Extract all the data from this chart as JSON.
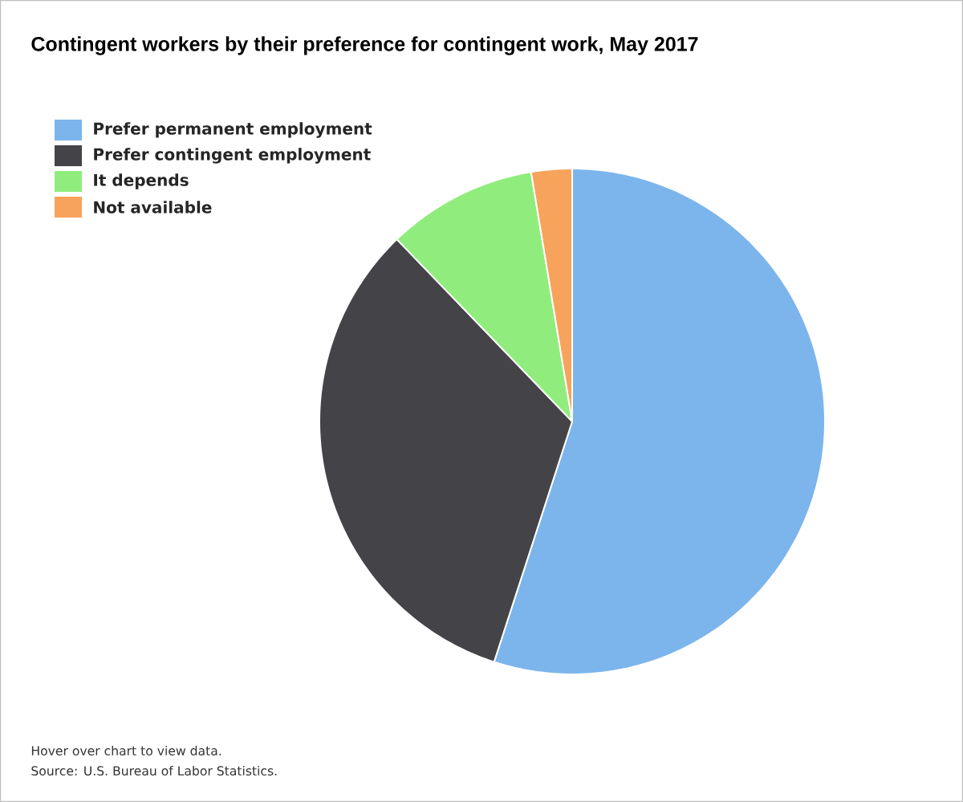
{
  "chart_data": {
    "type": "pie",
    "title": "Contingent workers by their preference for contingent work, May 2017",
    "categories": [
      "Prefer permanent employment",
      "Prefer contingent employment",
      "It depends",
      "Not available"
    ],
    "values": [
      55.0,
      32.8,
      9.6,
      2.6
    ],
    "colors": [
      "#7cb5ec",
      "#434348",
      "#90ed7d",
      "#f7a35c"
    ],
    "legend": "top left",
    "annotations": [
      "Hover over chart to view data.",
      "Source: U.S. Bureau of Labor Statistics."
    ]
  }
}
